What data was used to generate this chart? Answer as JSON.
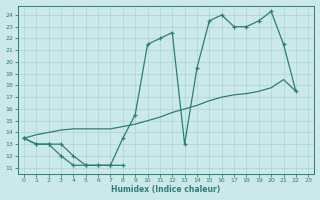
{
  "xlabel": "Humidex (Indice chaleur)",
  "bg_color": "#cce9e9",
  "grid_color": "#aad4d4",
  "line_color": "#2d7d7d",
  "xlim": [
    -0.5,
    23.5
  ],
  "ylim": [
    10.5,
    24.8
  ],
  "xticks": [
    0,
    1,
    2,
    3,
    4,
    5,
    6,
    7,
    8,
    9,
    10,
    11,
    12,
    13,
    14,
    15,
    16,
    17,
    18,
    19,
    20,
    21,
    22,
    23
  ],
  "yticks": [
    11,
    12,
    13,
    14,
    15,
    16,
    17,
    18,
    19,
    20,
    21,
    22,
    23,
    24
  ],
  "curve_main_x": [
    0,
    1,
    2,
    3,
    4,
    5,
    6,
    7,
    8,
    9,
    10,
    11,
    12,
    13,
    14,
    15,
    16,
    17,
    18,
    19,
    20,
    21,
    22
  ],
  "curve_main_y": [
    13.5,
    13.0,
    13.0,
    12.0,
    11.2,
    11.2,
    11.2,
    11.2,
    13.5,
    15.5,
    21.5,
    22.0,
    22.5,
    13.0,
    19.5,
    23.5,
    24.0,
    23.0,
    23.0,
    23.5,
    24.3,
    21.5,
    17.5
  ],
  "curve_low_x": [
    0,
    1,
    2,
    3,
    4,
    5,
    6,
    7,
    8
  ],
  "curve_low_y": [
    13.5,
    13.0,
    13.0,
    13.0,
    12.0,
    11.2,
    11.2,
    11.2,
    11.2
  ],
  "curve_diag_x": [
    0,
    1,
    2,
    3,
    4,
    5,
    6,
    7,
    8,
    9,
    10,
    11,
    12,
    13,
    14,
    15,
    16,
    17,
    18,
    19,
    20,
    21,
    22
  ],
  "curve_diag_y": [
    13.5,
    13.8,
    14.0,
    14.2,
    14.3,
    14.3,
    14.3,
    14.3,
    14.5,
    14.7,
    15.0,
    15.3,
    15.7,
    16.0,
    16.3,
    16.7,
    17.0,
    17.2,
    17.3,
    17.5,
    17.8,
    18.5,
    17.5
  ]
}
